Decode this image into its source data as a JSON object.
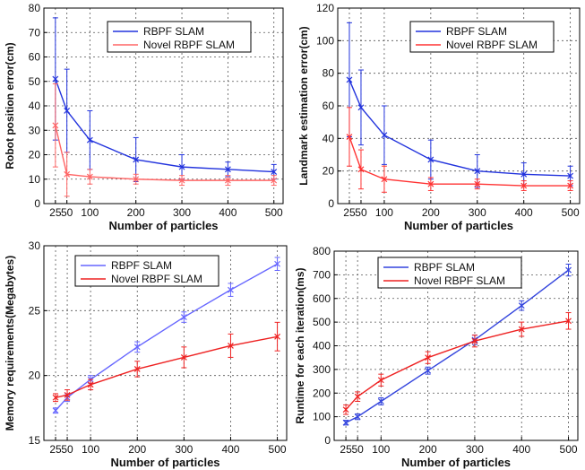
{
  "chart_data": [
    {
      "type": "line",
      "xlabel": "Number of particles",
      "ylabel": "Robot position error(cm)",
      "x": [
        25,
        50,
        100,
        200,
        300,
        400,
        500
      ],
      "xticks": [
        25,
        50,
        100,
        200,
        300,
        400,
        500
      ],
      "xtick_labels": [
        "25",
        "50",
        "100",
        "200",
        "300",
        "400",
        "500"
      ],
      "xlim": [
        0,
        520
      ],
      "ylim": [
        0,
        80
      ],
      "yticks": [
        0,
        10,
        20,
        30,
        40,
        50,
        60,
        70,
        80
      ],
      "grid": true,
      "legend_position": "top-right",
      "series": [
        {
          "name": "RBPF SLAM",
          "color": "#2233dd",
          "values": [
            51,
            38,
            26,
            18,
            15,
            14,
            13
          ],
          "err": [
            25,
            17,
            12,
            9,
            5,
            3,
            3
          ]
        },
        {
          "name": "Novel RBPF SLAM",
          "color": "#ff6666",
          "values": [
            32,
            12,
            11,
            10,
            9.5,
            9.5,
            9.5
          ],
          "err": [
            17,
            9,
            3,
            2,
            2,
            2,
            2
          ]
        }
      ]
    },
    {
      "type": "line",
      "xlabel": "Number of particles",
      "ylabel": "Landmark estimation error(cm)",
      "x": [
        25,
        50,
        100,
        200,
        300,
        400,
        500
      ],
      "xticks": [
        25,
        50,
        100,
        200,
        300,
        400,
        500
      ],
      "xtick_labels": [
        "25",
        "50",
        "100",
        "200",
        "300",
        "400",
        "500"
      ],
      "xlim": [
        0,
        520
      ],
      "ylim": [
        0,
        120
      ],
      "yticks": [
        0,
        20,
        40,
        60,
        80,
        100,
        120
      ],
      "grid": true,
      "legend_position": "top-right",
      "series": [
        {
          "name": "RBPF SLAM",
          "color": "#2233dd",
          "values": [
            76,
            59,
            42,
            27,
            20,
            18,
            17
          ],
          "err": [
            35,
            23,
            18,
            12,
            10,
            7,
            6
          ]
        },
        {
          "name": "Novel RBPF SLAM",
          "color": "#ff3333",
          "values": [
            41,
            21,
            15,
            12,
            12,
            11,
            11
          ],
          "err": [
            18,
            12,
            8,
            4,
            3,
            3,
            3
          ]
        }
      ]
    },
    {
      "type": "line",
      "xlabel": "Number of particles",
      "ylabel": "Memory requirements(Megabytes)",
      "x": [
        25,
        50,
        100,
        200,
        300,
        400,
        500
      ],
      "xticks": [
        25,
        50,
        100,
        200,
        300,
        400,
        500
      ],
      "xtick_labels": [
        "25",
        "50",
        "100",
        "200",
        "300",
        "400",
        "500"
      ],
      "xlim": [
        0,
        520
      ],
      "ylim": [
        15,
        30
      ],
      "yticks": [
        15,
        20,
        25,
        30
      ],
      "grid": true,
      "legend_position": "top-left",
      "series": [
        {
          "name": "RBPF SLAM",
          "color": "#6666ff",
          "values": [
            17.3,
            18.3,
            19.7,
            22.2,
            24.5,
            26.6,
            28.6
          ],
          "err": [
            0.2,
            0.3,
            0.3,
            0.4,
            0.4,
            0.5,
            0.5
          ]
        },
        {
          "name": "Novel RBPF SLAM",
          "color": "#ee2222",
          "values": [
            18.3,
            18.5,
            19.3,
            20.5,
            21.4,
            22.3,
            23.0
          ],
          "err": [
            0.3,
            0.4,
            0.4,
            0.6,
            0.8,
            0.9,
            1.1
          ]
        }
      ]
    },
    {
      "type": "line",
      "xlabel": "Number of particles",
      "ylabel": "Runtime for each iteration(ms)",
      "x": [
        25,
        50,
        100,
        200,
        300,
        400,
        500
      ],
      "xticks": [
        25,
        50,
        100,
        200,
        300,
        400,
        500
      ],
      "xtick_labels": [
        "25",
        "50",
        "100",
        "200",
        "300",
        "400",
        "500"
      ],
      "xlim": [
        0,
        520
      ],
      "ylim": [
        0,
        800
      ],
      "yticks": [
        0,
        100,
        200,
        300,
        400,
        500,
        600,
        700,
        800
      ],
      "grid": true,
      "legend_position": "top-left",
      "series": [
        {
          "name": "RBPF SLAM",
          "color": "#3344dd",
          "values": [
            75,
            100,
            165,
            295,
            425,
            570,
            720
          ],
          "err": [
            10,
            12,
            15,
            15,
            20,
            20,
            25
          ]
        },
        {
          "name": "Novel RBPF SLAM",
          "color": "#ee2222",
          "values": [
            130,
            185,
            255,
            350,
            420,
            470,
            505
          ],
          "err": [
            20,
            20,
            25,
            25,
            25,
            30,
            35
          ]
        }
      ]
    }
  ]
}
